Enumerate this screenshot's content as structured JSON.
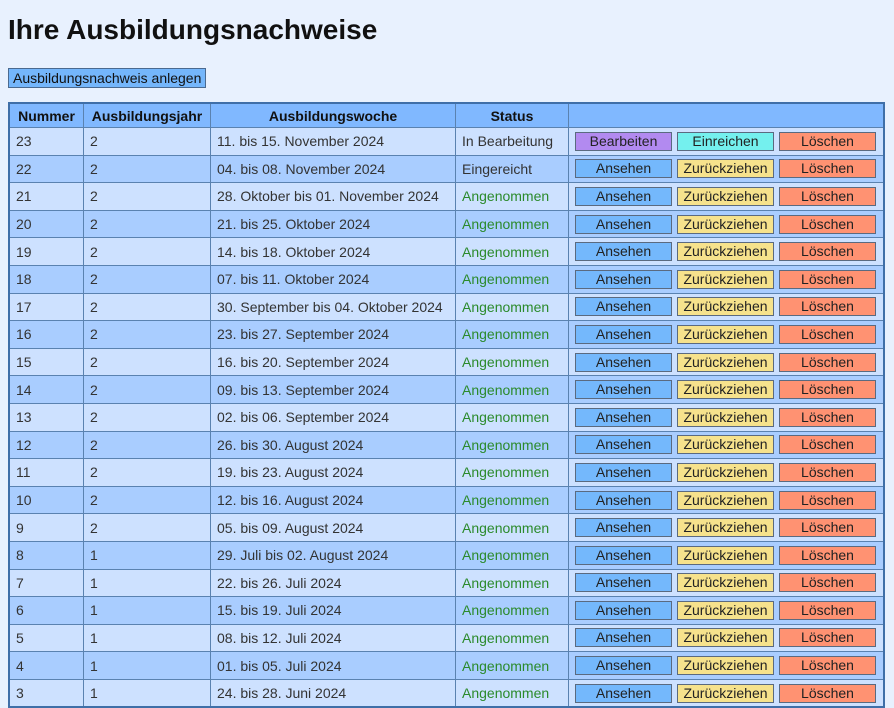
{
  "title": "Ihre Ausbildungsnachweise",
  "create_button": "Ausbildungsnachweis anlegen",
  "columns": [
    "Nummer",
    "Ausbildungsjahr",
    "Ausbildungswoche",
    "Status",
    ""
  ],
  "colors": {
    "Bearbeiten": "#b28af0",
    "Einreichen": "#74f0ee",
    "Löschen": "#ff9272",
    "Ansehen": "#74b8fc",
    "Zurückziehen": "#f6e28c",
    "accepted": "#2b8a2b"
  },
  "rows": [
    {
      "nr": "23",
      "jahr": "2",
      "woche": "11. bis 15. November 2024",
      "status": "In Bearbeitung",
      "actions": [
        "Bearbeiten",
        "Einreichen",
        "Löschen"
      ]
    },
    {
      "nr": "22",
      "jahr": "2",
      "woche": "04. bis 08. November 2024",
      "status": "Eingereicht",
      "actions": [
        "Ansehen",
        "Zurückziehen",
        "Löschen"
      ]
    },
    {
      "nr": "21",
      "jahr": "2",
      "woche": "28. Oktober bis 01. November 2024",
      "status": "Angenommen",
      "actions": [
        "Ansehen",
        "Zurückziehen",
        "Löschen"
      ]
    },
    {
      "nr": "20",
      "jahr": "2",
      "woche": "21. bis 25. Oktober 2024",
      "status": "Angenommen",
      "actions": [
        "Ansehen",
        "Zurückziehen",
        "Löschen"
      ]
    },
    {
      "nr": "19",
      "jahr": "2",
      "woche": "14. bis 18. Oktober 2024",
      "status": "Angenommen",
      "actions": [
        "Ansehen",
        "Zurückziehen",
        "Löschen"
      ]
    },
    {
      "nr": "18",
      "jahr": "2",
      "woche": "07. bis 11. Oktober 2024",
      "status": "Angenommen",
      "actions": [
        "Ansehen",
        "Zurückziehen",
        "Löschen"
      ]
    },
    {
      "nr": "17",
      "jahr": "2",
      "woche": "30. September bis 04. Oktober 2024",
      "status": "Angenommen",
      "actions": [
        "Ansehen",
        "Zurückziehen",
        "Löschen"
      ]
    },
    {
      "nr": "16",
      "jahr": "2",
      "woche": "23. bis 27. September 2024",
      "status": "Angenommen",
      "actions": [
        "Ansehen",
        "Zurückziehen",
        "Löschen"
      ]
    },
    {
      "nr": "15",
      "jahr": "2",
      "woche": "16. bis 20. September 2024",
      "status": "Angenommen",
      "actions": [
        "Ansehen",
        "Zurückziehen",
        "Löschen"
      ]
    },
    {
      "nr": "14",
      "jahr": "2",
      "woche": "09. bis 13. September 2024",
      "status": "Angenommen",
      "actions": [
        "Ansehen",
        "Zurückziehen",
        "Löschen"
      ]
    },
    {
      "nr": "13",
      "jahr": "2",
      "woche": "02. bis 06. September 2024",
      "status": "Angenommen",
      "actions": [
        "Ansehen",
        "Zurückziehen",
        "Löschen"
      ]
    },
    {
      "nr": "12",
      "jahr": "2",
      "woche": "26. bis 30. August 2024",
      "status": "Angenommen",
      "actions": [
        "Ansehen",
        "Zurückziehen",
        "Löschen"
      ]
    },
    {
      "nr": "11",
      "jahr": "2",
      "woche": "19. bis 23. August 2024",
      "status": "Angenommen",
      "actions": [
        "Ansehen",
        "Zurückziehen",
        "Löschen"
      ]
    },
    {
      "nr": "10",
      "jahr": "2",
      "woche": "12. bis 16. August 2024",
      "status": "Angenommen",
      "actions": [
        "Ansehen",
        "Zurückziehen",
        "Löschen"
      ]
    },
    {
      "nr": "9",
      "jahr": "2",
      "woche": "05. bis 09. August 2024",
      "status": "Angenommen",
      "actions": [
        "Ansehen",
        "Zurückziehen",
        "Löschen"
      ]
    },
    {
      "nr": "8",
      "jahr": "1",
      "woche": "29. Juli bis 02. August 2024",
      "status": "Angenommen",
      "actions": [
        "Ansehen",
        "Zurückziehen",
        "Löschen"
      ]
    },
    {
      "nr": "7",
      "jahr": "1",
      "woche": "22. bis 26. Juli 2024",
      "status": "Angenommen",
      "actions": [
        "Ansehen",
        "Zurückziehen",
        "Löschen"
      ]
    },
    {
      "nr": "6",
      "jahr": "1",
      "woche": "15. bis 19. Juli 2024",
      "status": "Angenommen",
      "actions": [
        "Ansehen",
        "Zurückziehen",
        "Löschen"
      ]
    },
    {
      "nr": "5",
      "jahr": "1",
      "woche": "08. bis 12. Juli 2024",
      "status": "Angenommen",
      "actions": [
        "Ansehen",
        "Zurückziehen",
        "Löschen"
      ]
    },
    {
      "nr": "4",
      "jahr": "1",
      "woche": "01. bis 05. Juli 2024",
      "status": "Angenommen",
      "actions": [
        "Ansehen",
        "Zurückziehen",
        "Löschen"
      ]
    },
    {
      "nr": "3",
      "jahr": "1",
      "woche": "24. bis 28. Juni 2024",
      "status": "Angenommen",
      "actions": [
        "Ansehen",
        "Zurückziehen",
        "Löschen"
      ]
    }
  ]
}
